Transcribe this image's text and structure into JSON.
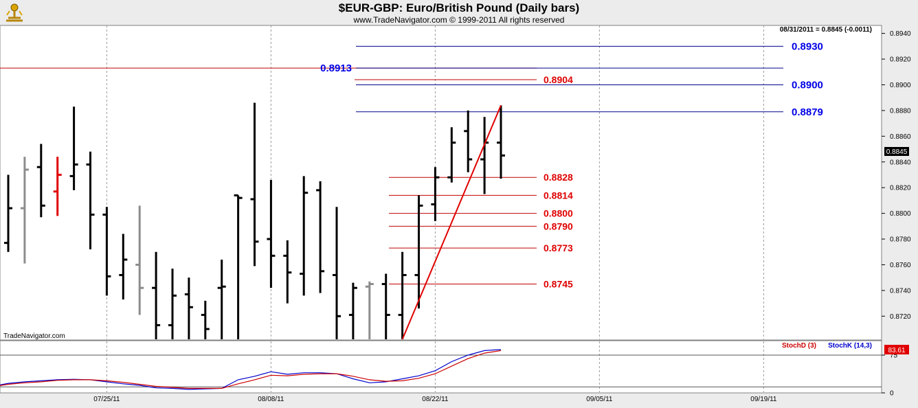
{
  "header": {
    "title": "$EUR-GBP:  Euro/British Pound  (Daily bars)",
    "subtitle": "www.TradeNavigator.com © 1999-2011 All rights reserved"
  },
  "info_readout": "08/31/2011 = 0.8845 (-0.0011)",
  "watermark": "TradeNavigator.com",
  "colors": {
    "bar_up": "#000000",
    "bar_gray": "#8c8c8c",
    "bar_red": "#e00000",
    "level_blue": "#00008b",
    "level_red": "#c00000",
    "label_blue": "#0000e6",
    "label_red": "#e00000",
    "stoch_k": "#0000cc",
    "stoch_d": "#cc0000"
  },
  "chart_data": [
    {
      "type": "ohlc",
      "title": "$EUR-GBP:  Euro/British Pound  (Daily bars)",
      "x_tick_labels": [
        "07/25/11",
        "08/08/11",
        "08/22/11",
        "09/05/11",
        "09/19/11"
      ],
      "y_tick_labels": [
        "0.8720",
        "0.8740",
        "0.8760",
        "0.8780",
        "0.8800",
        "0.8820",
        "0.8840",
        "0.8860",
        "0.8880",
        "0.8900",
        "0.8920",
        "0.8940"
      ],
      "ylim": [
        0.8702,
        0.8943
      ],
      "last_price": "0.8845",
      "bars": [
        {
          "date": "07/18/11",
          "o": 0.8777,
          "h": 0.883,
          "l": 0.877,
          "c": 0.8804,
          "color": "black"
        },
        {
          "date": "07/19/11",
          "o": 0.8804,
          "h": 0.8844,
          "l": 0.8761,
          "c": 0.8834,
          "color": "gray"
        },
        {
          "date": "07/20/11",
          "o": 0.8836,
          "h": 0.8854,
          "l": 0.8797,
          "c": 0.8806,
          "color": "black"
        },
        {
          "date": "07/21/11",
          "o": 0.8817,
          "h": 0.8844,
          "l": 0.8798,
          "c": 0.883,
          "color": "red"
        },
        {
          "date": "07/22/11",
          "o": 0.8829,
          "h": 0.8883,
          "l": 0.8818,
          "c": 0.8838,
          "color": "black"
        },
        {
          "date": "07/25/11",
          "o": 0.8838,
          "h": 0.8848,
          "l": 0.8772,
          "c": 0.8799,
          "color": "black"
        },
        {
          "date": "07/26/11",
          "o": 0.8799,
          "h": 0.8805,
          "l": 0.8736,
          "c": 0.8751,
          "color": "black"
        },
        {
          "date": "07/27/11",
          "o": 0.8752,
          "h": 0.8784,
          "l": 0.8733,
          "c": 0.8764,
          "color": "black"
        },
        {
          "date": "07/28/11",
          "o": 0.876,
          "h": 0.8806,
          "l": 0.8721,
          "c": 0.8742,
          "color": "gray"
        },
        {
          "date": "07/29/11",
          "o": 0.8742,
          "h": 0.877,
          "l": 0.8702,
          "c": 0.8713,
          "color": "black"
        },
        {
          "date": "08/01/11",
          "o": 0.8713,
          "h": 0.8757,
          "l": 0.8702,
          "c": 0.8736,
          "color": "black"
        },
        {
          "date": "08/02/11",
          "o": 0.8737,
          "h": 0.875,
          "l": 0.8702,
          "c": 0.8727,
          "color": "black"
        },
        {
          "date": "08/03/11",
          "o": 0.8721,
          "h": 0.8732,
          "l": 0.8702,
          "c": 0.871,
          "color": "black"
        },
        {
          "date": "08/04/11",
          "o": 0.8742,
          "h": 0.8764,
          "l": 0.8702,
          "c": 0.8743,
          "color": "black"
        },
        {
          "date": "08/05/11",
          "o": 0.8814,
          "h": 0.8814,
          "l": 0.8702,
          "c": 0.8812,
          "color": "black"
        },
        {
          "date": "08/08/11",
          "o": 0.8811,
          "h": 0.8886,
          "l": 0.8759,
          "c": 0.8778,
          "color": "black"
        },
        {
          "date": "08/09/11",
          "o": 0.878,
          "h": 0.8826,
          "l": 0.8742,
          "c": 0.8767,
          "color": "black"
        },
        {
          "date": "08/10/11",
          "o": 0.8767,
          "h": 0.8779,
          "l": 0.873,
          "c": 0.8754,
          "color": "black"
        },
        {
          "date": "08/11/11",
          "o": 0.8753,
          "h": 0.8829,
          "l": 0.8736,
          "c": 0.8816,
          "color": "black"
        },
        {
          "date": "08/12/11",
          "o": 0.8818,
          "h": 0.8825,
          "l": 0.8738,
          "c": 0.8755,
          "color": "black"
        },
        {
          "date": "08/15/11",
          "o": 0.8752,
          "h": 0.8805,
          "l": 0.8702,
          "c": 0.872,
          "color": "black"
        },
        {
          "date": "08/16/11",
          "o": 0.8721,
          "h": 0.8746,
          "l": 0.8702,
          "c": 0.8742,
          "color": "black"
        },
        {
          "date": "08/17/11",
          "o": 0.8743,
          "h": 0.8747,
          "l": 0.8702,
          "c": 0.8745,
          "color": "gray"
        },
        {
          "date": "08/18/11",
          "o": 0.8745,
          "h": 0.8753,
          "l": 0.8702,
          "c": 0.8721,
          "color": "black"
        },
        {
          "date": "08/19/11",
          "o": 0.8721,
          "h": 0.877,
          "l": 0.8702,
          "c": 0.8752,
          "color": "black"
        },
        {
          "date": "08/22/11",
          "o": 0.8752,
          "h": 0.8814,
          "l": 0.8726,
          "c": 0.8806,
          "color": "black"
        },
        {
          "date": "08/23/11",
          "o": 0.8807,
          "h": 0.8836,
          "l": 0.8794,
          "c": 0.8828,
          "color": "black"
        },
        {
          "date": "08/24/11",
          "o": 0.8828,
          "h": 0.8867,
          "l": 0.8824,
          "c": 0.8855,
          "color": "black"
        },
        {
          "date": "08/25/11",
          "o": 0.8864,
          "h": 0.888,
          "l": 0.8832,
          "c": 0.8842,
          "color": "black"
        },
        {
          "date": "08/26/11",
          "o": 0.8842,
          "h": 0.8875,
          "l": 0.8815,
          "c": 0.8855,
          "color": "black"
        },
        {
          "date": "08/29/11",
          "o": 0.8855,
          "h": 0.8884,
          "l": 0.8827,
          "c": 0.8845,
          "color": "black"
        }
      ],
      "levels": [
        {
          "value": 0.8913,
          "label": "0.8913",
          "color": "red",
          "span": "left"
        },
        {
          "value": 0.893,
          "label": "0.8930",
          "color": "blue",
          "span": "right"
        },
        {
          "value": 0.8913,
          "label": "",
          "color": "blue",
          "span": "right"
        },
        {
          "value": 0.8904,
          "label": "0.8904",
          "color": "red",
          "span": "mid"
        },
        {
          "value": 0.89,
          "label": "0.8900",
          "color": "blue",
          "span": "right"
        },
        {
          "value": 0.8879,
          "label": "0.8879",
          "color": "blue",
          "span": "right"
        },
        {
          "value": 0.8828,
          "label": "0.8828",
          "color": "red",
          "span": "short"
        },
        {
          "value": 0.8814,
          "label": "0.8814",
          "color": "red",
          "span": "short"
        },
        {
          "value": 0.88,
          "label": "0.8800",
          "color": "red",
          "span": "short"
        },
        {
          "value": 0.879,
          "label": "0.8790",
          "color": "red",
          "span": "short"
        },
        {
          "value": 0.8773,
          "label": "0.8773",
          "color": "red",
          "span": "short"
        },
        {
          "value": 0.8745,
          "label": "0.8745",
          "color": "red",
          "span": "short"
        }
      ],
      "trendline": {
        "from": {
          "date": "08/19/11",
          "price": 0.8702
        },
        "to": {
          "date": "08/29/11",
          "price": 0.8884
        }
      }
    },
    {
      "type": "line",
      "title": "",
      "legend": [
        "StochD (3)",
        "StochK (14,3)"
      ],
      "ylim": [
        0,
        100
      ],
      "y_tick_labels": [
        "0",
        "75"
      ],
      "last_value_label": "83.61",
      "reference_lines": [
        75,
        12
      ],
      "series": [
        {
          "name": "StochK (14,3)",
          "values": [
            13,
            19,
            22,
            24,
            26,
            27,
            26,
            22,
            18,
            15,
            10,
            9,
            7,
            8,
            9,
            26,
            33,
            42,
            37,
            40,
            40,
            38,
            28,
            20,
            22,
            28,
            34,
            44,
            62,
            75,
            84,
            86
          ]
        },
        {
          "name": "StochD (3)",
          "values": [
            12,
            17,
            20,
            22,
            25,
            26,
            26,
            24,
            21,
            17,
            13,
            11,
            9,
            9,
            9,
            18,
            26,
            35,
            34,
            37,
            38,
            38,
            33,
            26,
            23,
            24,
            29,
            38,
            53,
            68,
            79,
            84
          ]
        }
      ]
    }
  ]
}
